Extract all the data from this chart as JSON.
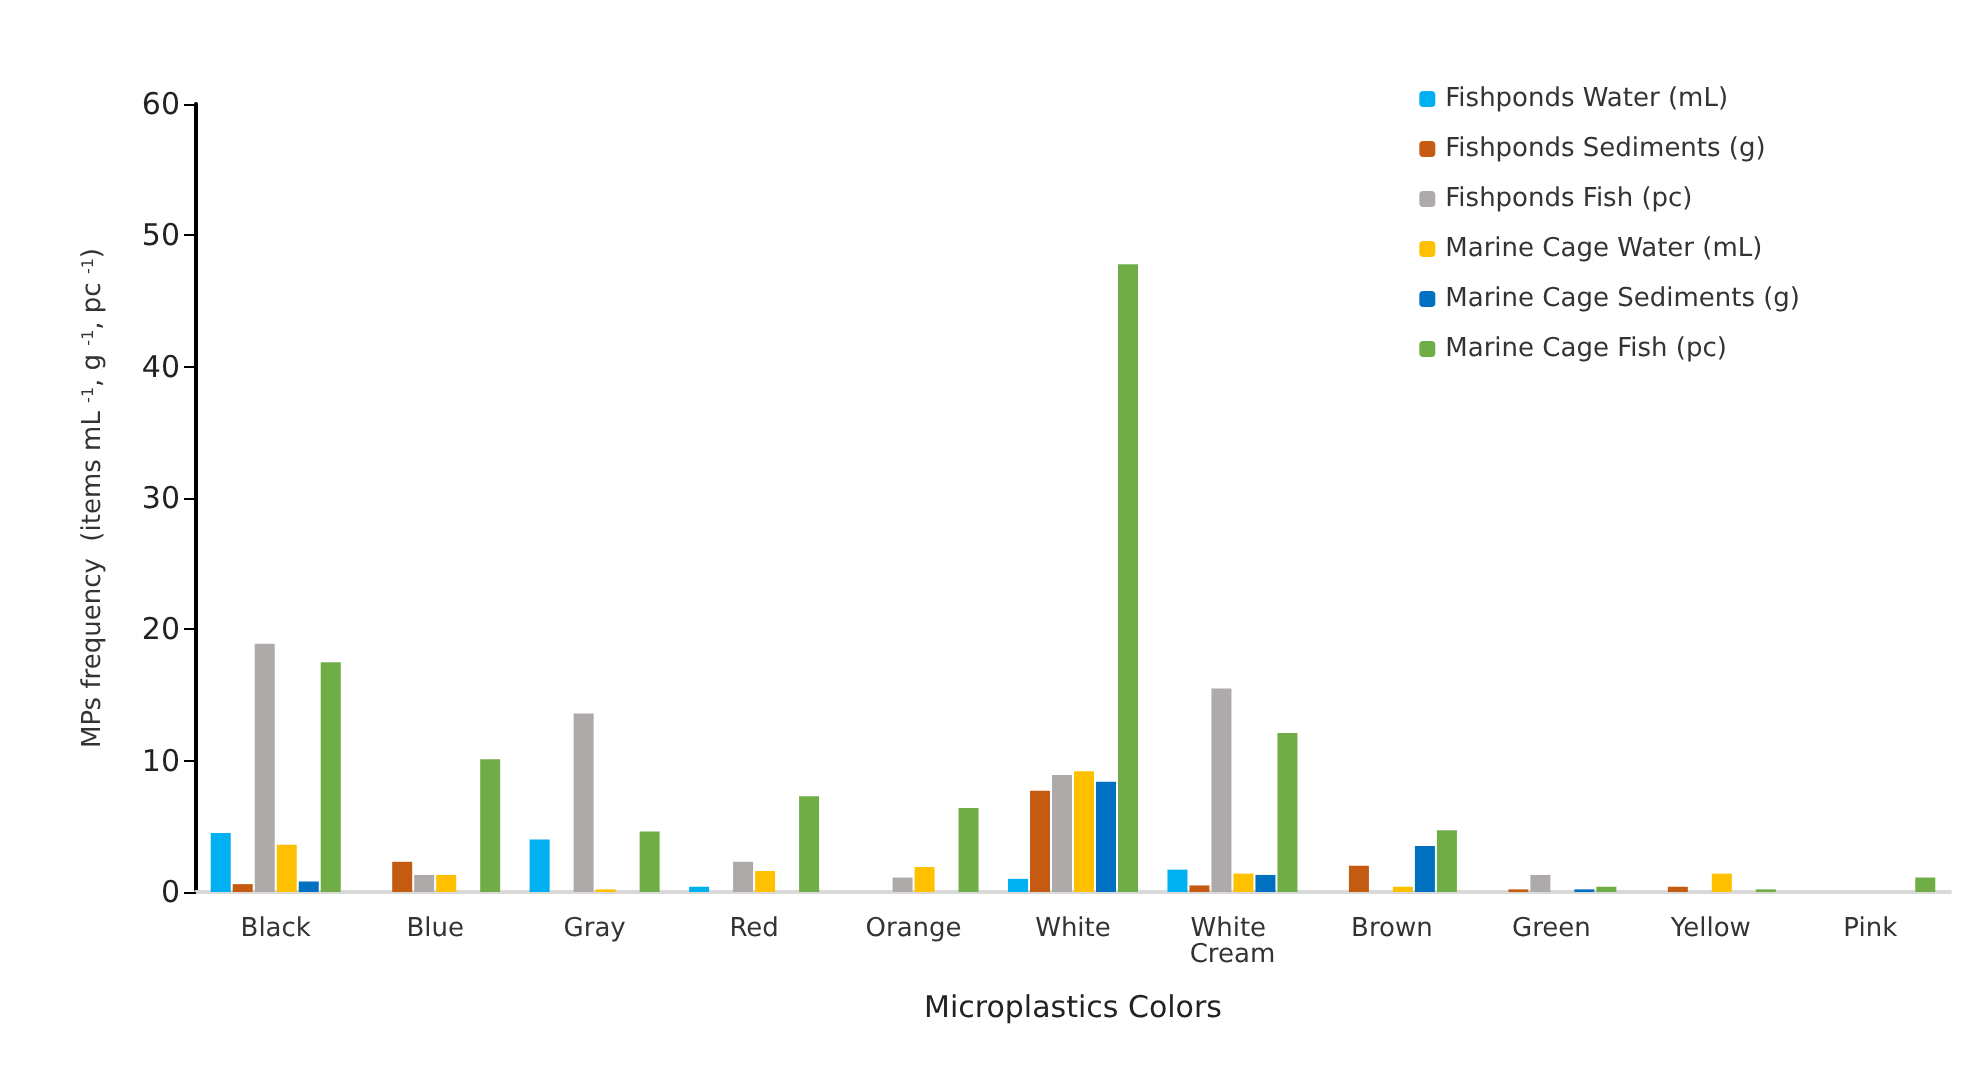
{
  "chart_data": {
    "type": "bar",
    "xlabel": "Microplastics Colors",
    "ylabel": "MPs frequency  (items mL $^{-1}$, g $^{-1}$, pc $^{-1}$)",
    "categories": [
      "Black",
      "Blue",
      "Gray",
      "Red",
      "Orange",
      "White",
      "White Cream",
      "Brown",
      "Green",
      "Yellow",
      "Pink"
    ],
    "series": [
      {
        "name": "Fishponds Water (mL)",
        "color": "#00b0f0",
        "values": [
          4.5,
          0,
          4.0,
          0.4,
          0,
          1.0,
          1.7,
          0,
          0,
          0,
          0
        ]
      },
      {
        "name": "Fishponds Sediments (g)",
        "color": "#c55a11",
        "values": [
          0.6,
          2.3,
          0,
          0,
          0,
          7.7,
          0.5,
          2.0,
          0.2,
          0.4,
          0
        ]
      },
      {
        "name": "Fishponds Fish (pc)",
        "color": "#aeaaaa",
        "values": [
          18.9,
          1.3,
          13.6,
          2.3,
          1.1,
          8.9,
          15.5,
          0,
          1.3,
          0,
          0
        ]
      },
      {
        "name": "Marine Cage Water (mL)",
        "color": "#ffc000",
        "values": [
          3.6,
          1.3,
          0.2,
          1.6,
          1.9,
          9.2,
          1.4,
          0.4,
          0,
          1.4,
          0
        ]
      },
      {
        "name": "Marine Cage Sediments (g)",
        "color": "#0070c0",
        "values": [
          0.8,
          0,
          0,
          0,
          0,
          8.4,
          1.3,
          3.5,
          0.2,
          0,
          0
        ]
      },
      {
        "name": "Marine Cage Fish (pc)",
        "color": "#70ad47",
        "values": [
          17.5,
          10.1,
          4.6,
          7.3,
          6.4,
          47.8,
          12.1,
          4.7,
          0.4,
          0.2,
          1.1
        ]
      }
    ],
    "ylim": [
      0,
      60
    ],
    "yticks": [
      0,
      10,
      20,
      30,
      40,
      50,
      60
    ],
    "grid": false,
    "legend": "top right"
  }
}
